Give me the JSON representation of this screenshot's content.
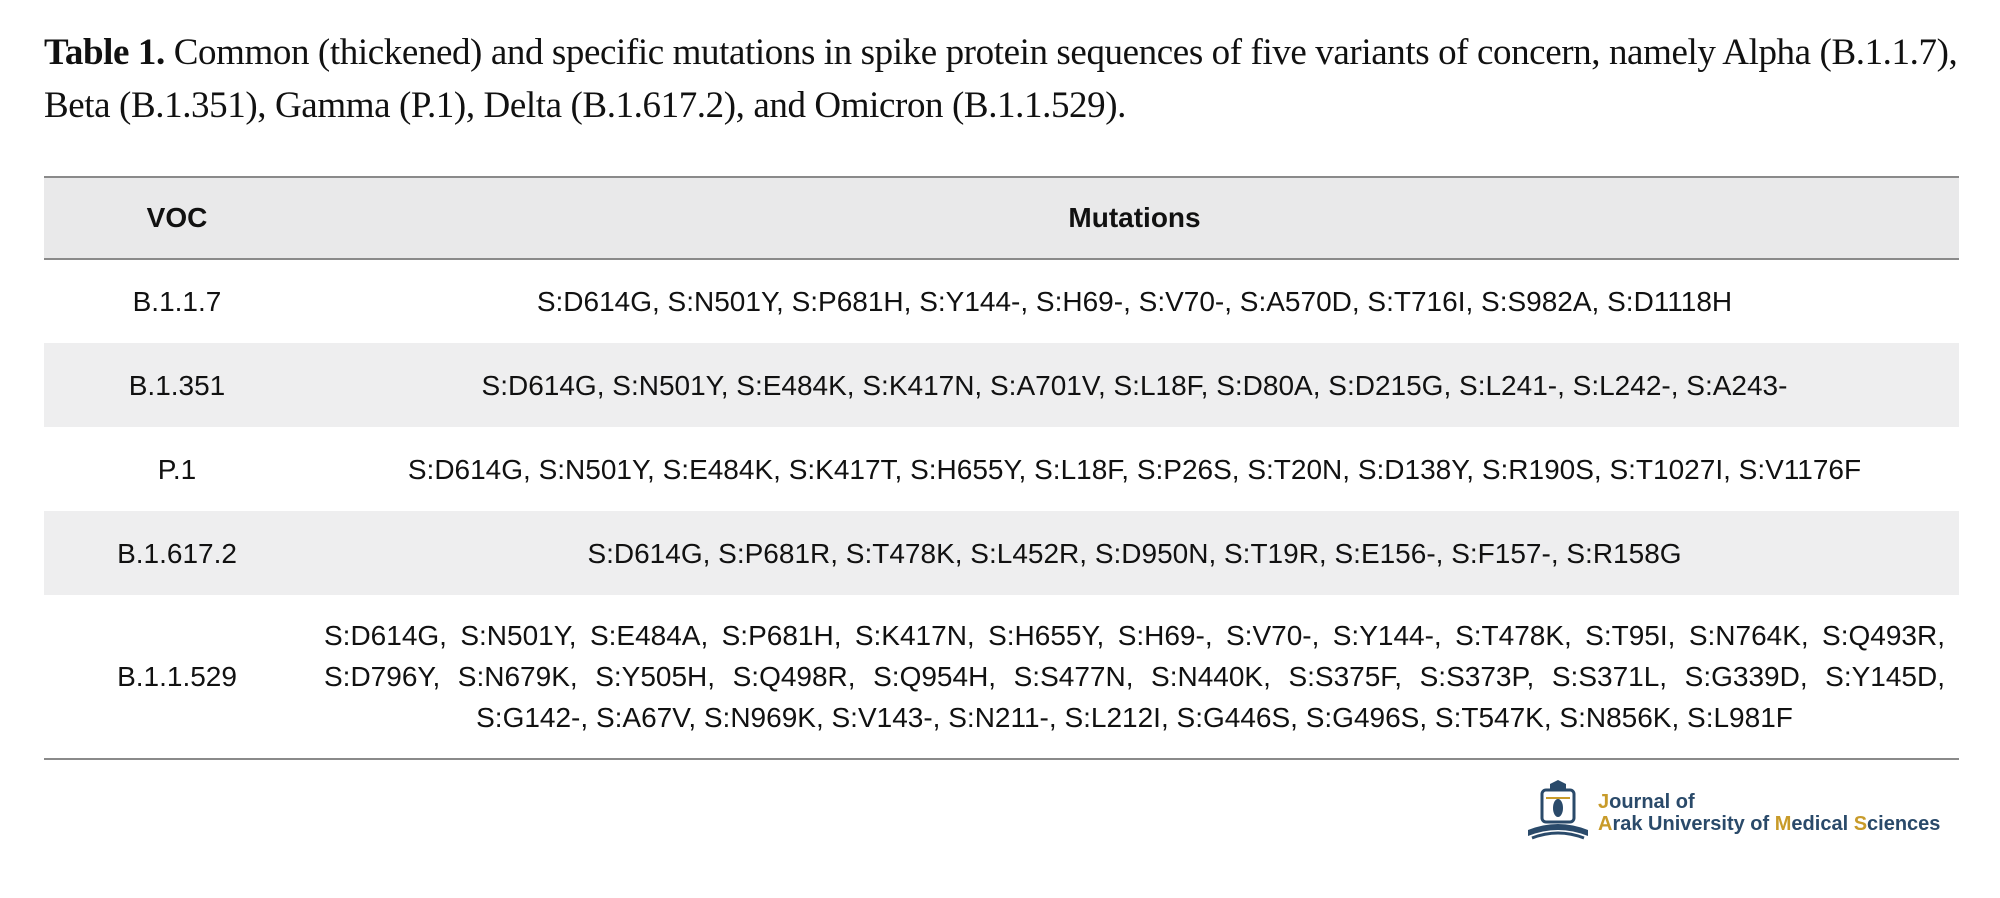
{
  "caption": {
    "label": "Table 1.",
    "text": " Common (thickened) and specific mutations in spike protein sequences of five variants of concern, namely Alpha (B.1.1.7), Beta (B.1.351), Gamma (P.1), Delta (B.1.617.2), and Omicron (B.1.1.529)."
  },
  "table": {
    "headers": [
      "VOC",
      "Mutations"
    ],
    "rows": [
      {
        "voc": "B.1.1.7",
        "mutations": "S:D614G, S:N501Y, S:P681H, S:Y144-, S:H69-, S:V70-, S:A570D, S:T716I, S:S982A, S:D1118H"
      },
      {
        "voc": "B.1.351",
        "mutations": "S:D614G, S:N501Y, S:E484K, S:K417N, S:A701V, S:L18F, S:D80A, S:D215G, S:L241-, S:L242-, S:A243-"
      },
      {
        "voc": "P.1",
        "mutations": "S:D614G, S:N501Y, S:E484K, S:K417T, S:H655Y, S:L18F, S:P26S, S:T20N, S:D138Y, S:R190S, S:T1027I, S:V1176F"
      },
      {
        "voc": "B.1.617.2",
        "mutations": "S:D614G, S:P681R, S:T478K, S:L452R, S:D950N, S:T19R, S:E156-, S:F157-, S:R158G"
      },
      {
        "voc": "B.1.1.529",
        "mutations": "S:D614G, S:N501Y, S:E484A, S:P681H, S:K417N, S:H655Y, S:H69-, S:V70-, S:Y144-, S:T478K, S:T95I, S:N764K, S:Q493R, S:D796Y, S:N679K, S:Y505H, S:Q498R, S:Q954H, S:S477N, S:N440K, S:S375F, S:S373P, S:S371L, S:G339D, S:Y145D, S:G142-, S:A67V, S:N969K, S:V143-, S:N211-, S:L212I, S:G446S, S:G496S, S:T547K, S:N856K, S:L981F"
      }
    ]
  },
  "logo": {
    "icon": "journal-emblem-icon",
    "line1_accent": "J",
    "line1_rest": "ournal of",
    "line2_a": "A",
    "line2_b": "rak University of ",
    "line2_c": "M",
    "line2_d": "edical ",
    "line2_e": "S",
    "line2_f": "ciences",
    "colors": {
      "primary": "#2a4a6a",
      "accent": "#c89b2a"
    }
  }
}
